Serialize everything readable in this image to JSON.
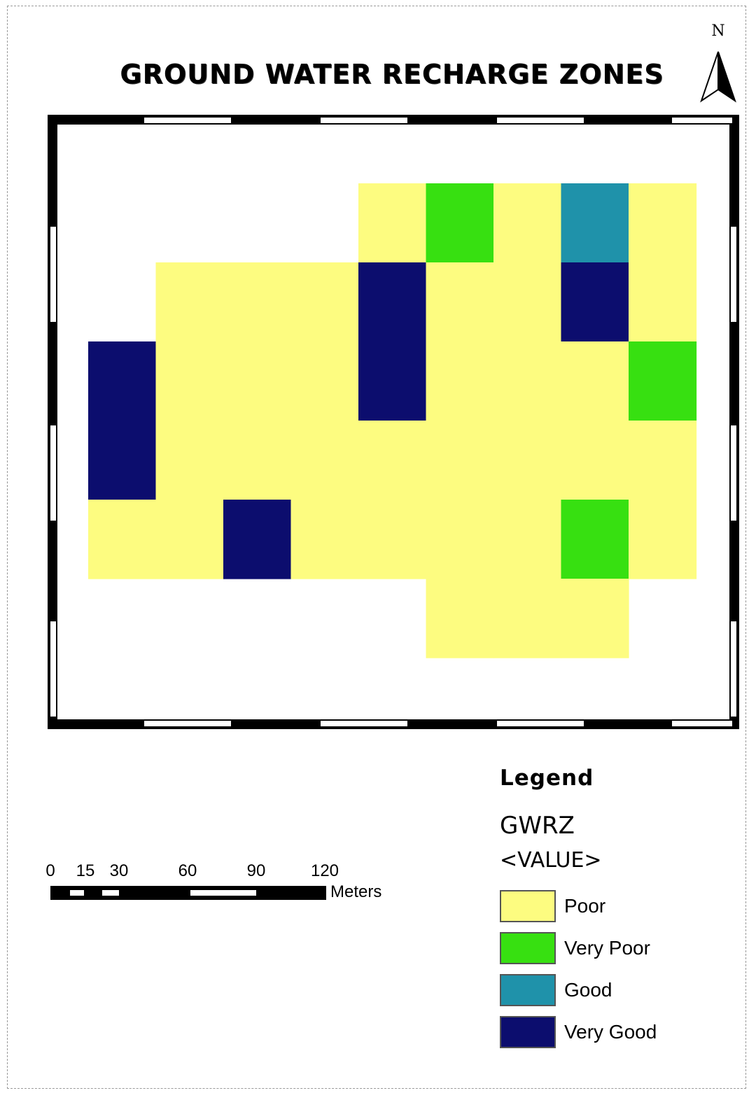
{
  "title": "GROUND WATER RECHARGE ZONES",
  "north_arrow": {
    "letter": "N",
    "icon": "north-arrow-icon"
  },
  "legend": {
    "title": "Legend",
    "layer": "GWRZ",
    "field": "<VALUE>",
    "items": [
      {
        "label": "Poor",
        "color": "#fdfc80"
      },
      {
        "label": "Very Poor",
        "color": "#37e011"
      },
      {
        "label": "Good",
        "color": "#1f92aa"
      },
      {
        "label": "Very Good",
        "color": "#0c0d6e"
      }
    ]
  },
  "scale_bar": {
    "ticks": [
      "0",
      "15",
      "30",
      "60",
      "90",
      "120"
    ],
    "unit": "Meters"
  },
  "map": {
    "description_grid": "zone classes per cell (rows top to bottom, cols left to right); null = no data",
    "cells": [
      [
        null,
        null,
        null,
        null,
        "Poor",
        "Very Poor",
        "Poor",
        "Good",
        "Poor"
      ],
      [
        null,
        "Poor",
        "Poor",
        "Poor",
        "Very Good",
        "Poor",
        "Poor",
        "Very Good",
        "Poor"
      ],
      [
        "Very Good",
        "Poor",
        "Poor",
        "Poor",
        "Very Good",
        "Poor",
        "Poor",
        "Poor",
        "Very Poor"
      ],
      [
        "Very Good",
        "Poor",
        "Poor",
        "Poor",
        "Poor",
        "Poor",
        "Poor",
        "Poor",
        "Poor"
      ],
      [
        "Poor",
        "Poor",
        "Very Good",
        "Poor",
        "Poor",
        "Poor",
        "Poor",
        "Very Poor",
        "Poor"
      ],
      [
        null,
        null,
        null,
        null,
        null,
        "Poor",
        "Poor",
        "Poor",
        null
      ]
    ]
  }
}
